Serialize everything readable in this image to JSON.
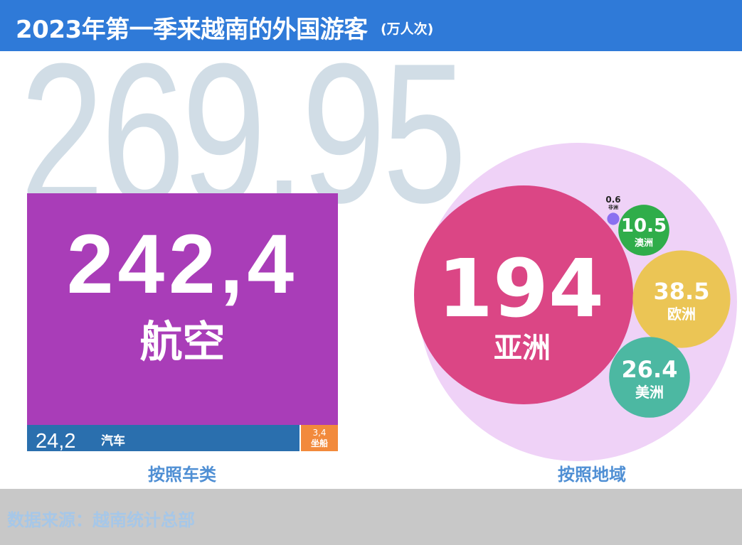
{
  "header": {
    "title": "2023年第一季来越南的外国游客",
    "unit": "(万人次)"
  },
  "total_label": "269,95",
  "chart_data": [
    {
      "type": "treemap",
      "caption": "按照车类",
      "items": [
        {
          "label": "航空",
          "value_label": "242,4",
          "value": 242.4,
          "color": "#a93db8"
        },
        {
          "label": "汽车",
          "value_label": "24,2",
          "value": 24.2,
          "color": "#2a6fae"
        },
        {
          "label": "坐船",
          "value_label": "3,4",
          "value": 3.4,
          "color": "#f28a3c"
        }
      ]
    },
    {
      "type": "bubble",
      "caption": "按照地域",
      "items": [
        {
          "label": "亚洲",
          "value_label": "194",
          "value": 194,
          "color": "#db4685"
        },
        {
          "label": "欧洲",
          "value_label": "38.5",
          "value": 38.5,
          "color": "#ebc555"
        },
        {
          "label": "美洲",
          "value_label": "26.4",
          "value": 26.4,
          "color": "#4cb8a2"
        },
        {
          "label": "澳洲",
          "value_label": "10.5",
          "value": 10.5,
          "color": "#2fad4a"
        },
        {
          "label": "非洲",
          "value_label": "0.6",
          "value": 0.6,
          "color": "#8a6ff0"
        }
      ],
      "container_color": "#efd2f7"
    }
  ],
  "footer": {
    "source": "数据来源：越南统计总部"
  }
}
